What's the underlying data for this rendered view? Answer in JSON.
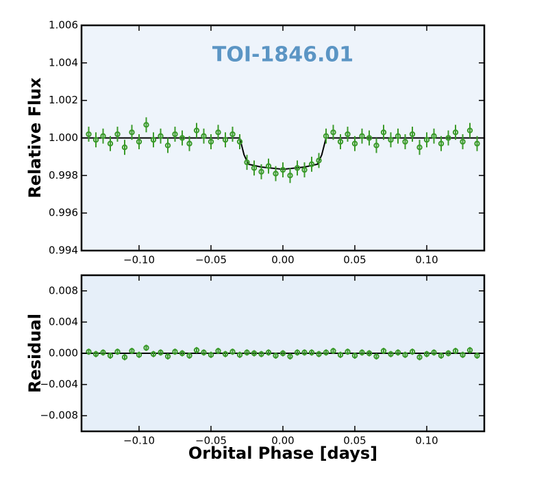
{
  "chart_data": [
    {
      "type": "scatter",
      "annotation": "TOI-1846.01",
      "ylabel": "Relative Flux",
      "xlim": [
        -0.14,
        0.14
      ],
      "ylim": [
        0.994,
        1.006
      ],
      "xticks": [
        {
          "value": -0.1,
          "label": "−0.10"
        },
        {
          "value": -0.05,
          "label": "−0.05"
        },
        {
          "value": 0,
          "label": "0.00"
        },
        {
          "value": 0.05,
          "label": "0.05"
        },
        {
          "value": 0.1,
          "label": "0.10"
        }
      ],
      "yticks": [
        0.994,
        0.996,
        0.998,
        {
          "value": 1,
          "label": "1.000"
        },
        1.002,
        1.004,
        1.006
      ],
      "x": [
        -0.135,
        -0.13,
        -0.125,
        -0.12,
        -0.115,
        -0.11,
        -0.105,
        -0.1,
        -0.095,
        -0.09,
        -0.085,
        -0.08,
        -0.075,
        -0.07,
        -0.065,
        -0.06,
        -0.055,
        -0.05,
        -0.045,
        -0.04,
        -0.035,
        -0.03,
        -0.025,
        -0.02,
        -0.015,
        -0.01,
        -0.005,
        0,
        0.005,
        0.01,
        0.015,
        0.02,
        0.025,
        0.03,
        0.035,
        0.04,
        0.045,
        0.05,
        0.055,
        0.06,
        0.065,
        0.07,
        0.075,
        0.08,
        0.085,
        0.09,
        0.095,
        0.1,
        0.105,
        0.11,
        0.115,
        0.12,
        0.125,
        0.13,
        0.135
      ],
      "values": [
        1.0002,
        0.9999,
        1.0001,
        0.9997,
        1.0002,
        0.9995,
        1.0003,
        0.9998,
        1.0007,
        0.9999,
        1.0001,
        0.9996,
        1.0002,
        1.0,
        0.9997,
        1.0004,
        1.0001,
        0.9998,
        1.0003,
        0.9999,
        1.0002,
        0.9998,
        0.9987,
        0.9984,
        0.9982,
        0.9985,
        0.9981,
        0.9983,
        0.998,
        0.9984,
        0.9983,
        0.9986,
        0.9988,
        1.0001,
        1.0003,
        0.9998,
        1.0002,
        0.9997,
        1.0001,
        1.0,
        0.9996,
        1.0003,
        0.9999,
        1.0001,
        0.9998,
        1.0002,
        0.9995,
        0.9999,
        1.0001,
        0.9997,
        1.0,
        1.0003,
        0.9998,
        1.0004,
        0.9997
      ],
      "error": 0.0004,
      "color": "#3a9a2a",
      "model": {
        "x": [
          -0.14,
          -0.03,
          -0.027,
          -0.024,
          -0.015,
          0,
          0.015,
          0.024,
          0.027,
          0.03,
          0.14
        ],
        "values": [
          1,
          1,
          0.9991,
          0.9986,
          0.99845,
          0.99833,
          0.99845,
          0.9986,
          0.9991,
          1,
          1
        ],
        "color": "#000000"
      }
    },
    {
      "type": "scatter",
      "ylabel": "Residual",
      "xlabel": "Orbital Phase [days]",
      "xlim": [
        -0.14,
        0.14
      ],
      "ylim": [
        -0.01,
        0.01
      ],
      "xticks": [
        {
          "value": -0.1,
          "label": "−0.10"
        },
        {
          "value": -0.05,
          "label": "−0.05"
        },
        {
          "value": 0,
          "label": "0.00"
        },
        {
          "value": 0.05,
          "label": "0.05"
        },
        {
          "value": 0.1,
          "label": "0.10"
        }
      ],
      "yticks": [
        {
          "value": -0.008,
          "label": "−0.008"
        },
        {
          "value": -0.004,
          "label": "−0.004"
        },
        {
          "value": 0,
          "label": "0.000"
        },
        0.004,
        0.008
      ],
      "x": [
        -0.135,
        -0.13,
        -0.125,
        -0.12,
        -0.115,
        -0.11,
        -0.105,
        -0.1,
        -0.095,
        -0.09,
        -0.085,
        -0.08,
        -0.075,
        -0.07,
        -0.065,
        -0.06,
        -0.055,
        -0.05,
        -0.045,
        -0.04,
        -0.035,
        -0.03,
        -0.025,
        -0.02,
        -0.015,
        -0.01,
        -0.005,
        0,
        0.005,
        0.01,
        0.015,
        0.02,
        0.025,
        0.03,
        0.035,
        0.04,
        0.045,
        0.05,
        0.055,
        0.06,
        0.065,
        0.07,
        0.075,
        0.08,
        0.085,
        0.09,
        0.095,
        0.1,
        0.105,
        0.11,
        0.115,
        0.12,
        0.125,
        0.13,
        0.135
      ],
      "values": [
        0.0002,
        -0.0001,
        0.0001,
        -0.0003,
        0.0002,
        -0.0005,
        0.0003,
        -0.0002,
        0.0007,
        -0.0001,
        0.0001,
        -0.0004,
        0.0002,
        0,
        -0.0003,
        0.0004,
        0.0001,
        -0.0002,
        0.0003,
        -0.0001,
        0.0002,
        -0.0002,
        0.0001,
        0,
        -0.0001,
        0.0001,
        -0.0003,
        0,
        -0.0004,
        0.0001,
        0.0001,
        0.0001,
        -0.0001,
        0.0001,
        0.0003,
        -0.0002,
        0.0002,
        -0.0003,
        0.0001,
        0,
        -0.0004,
        0.0003,
        -0.0001,
        0.0001,
        -0.0002,
        0.0002,
        -0.0005,
        -0.0001,
        0.0001,
        -0.0003,
        0,
        0.0003,
        -0.0002,
        0.0004,
        -0.0003
      ],
      "error": 0.0004,
      "color": "#3a9a2a",
      "model": {
        "x": [
          -0.14,
          0.14
        ],
        "values": [
          0,
          0
        ],
        "color": "#000000"
      }
    }
  ]
}
